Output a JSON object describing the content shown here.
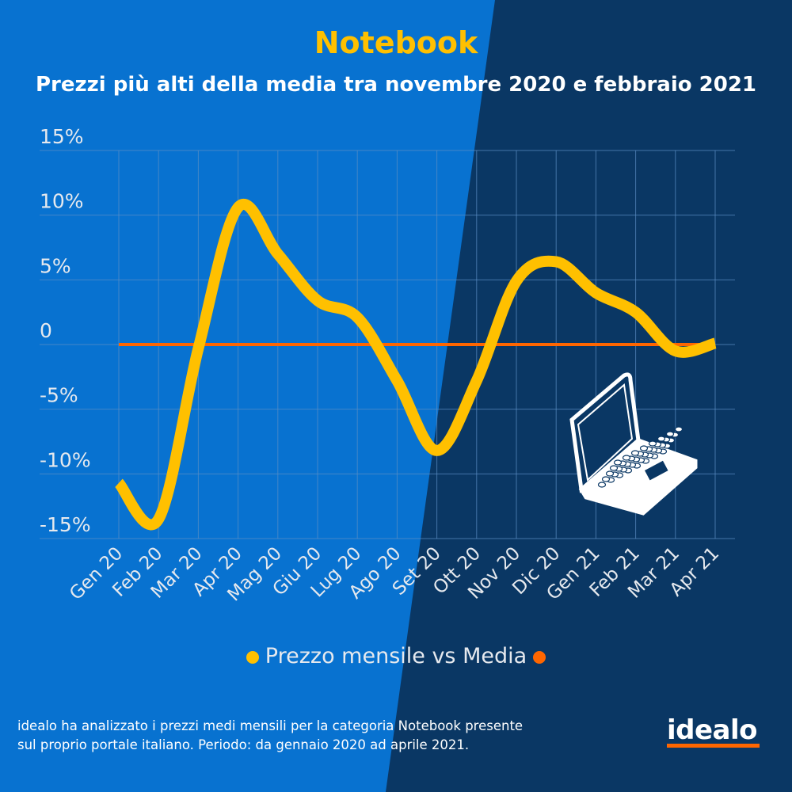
{
  "colors": {
    "bg_left": "#0872d0",
    "bg_right": "#0a3764",
    "series": "#ffc000",
    "average": "#ff6600",
    "grid": "#5d8fc4"
  },
  "header": {
    "title": "Notebook",
    "subtitle": "Prezzi più alti della media tra novembre 2020 e febbraio 2021"
  },
  "chart_data": {
    "type": "line",
    "title": "Notebook",
    "subtitle": "Prezzi più alti della media tra novembre 2020 e febbraio 2021",
    "xlabel": "",
    "ylabel": "",
    "categories": [
      "Gen 20",
      "Feb 20",
      "Mar 20",
      "Apr 20",
      "Mag 20",
      "Giu 20",
      "Lug 20",
      "Ago 20",
      "Set 20",
      "Ott 20",
      "Nov 20",
      "Dic 20",
      "Gen 21",
      "Feb 21",
      "Mar 21",
      "Apr 21"
    ],
    "y_ticks": [
      15,
      10,
      5,
      0,
      -5,
      -10,
      -15
    ],
    "y_tick_labels": [
      "15%",
      "10%",
      "5%",
      "0",
      "-5%",
      "-10%",
      "-15%"
    ],
    "ylim": [
      -15,
      15
    ],
    "grid": true,
    "legend_position": "bottom",
    "series": [
      {
        "name": "Prezzo mensile vs Media",
        "color": "#ffc000",
        "values": [
          -10.7,
          -13.5,
          -0.3,
          10.6,
          7.0,
          3.4,
          2.1,
          -2.8,
          -8.2,
          -2.8,
          4.9,
          6.4,
          4.0,
          2.5,
          -0.5,
          0.1
        ]
      },
      {
        "name": "Media",
        "color": "#ff6600",
        "values": [
          0,
          0,
          0,
          0,
          0,
          0,
          0,
          0,
          0,
          0,
          0,
          0,
          0,
          0,
          0,
          0
        ]
      }
    ]
  },
  "legend": {
    "label": "Prezzo mensile vs Media"
  },
  "footer": {
    "note_line1": "idealo ha analizzato i prezzi medi mensili per la categoria Notebook presente",
    "note_line2": "sul proprio portale italiano. Periodo: da gennaio 2020 ad aprile 2021.",
    "logo": "idealo"
  }
}
